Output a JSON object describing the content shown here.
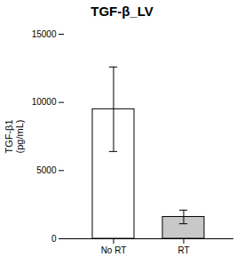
{
  "chart_data": {
    "type": "bar",
    "title": "TGF-β_LV",
    "categories": [
      "No RT",
      "RT"
    ],
    "values": [
      9500,
      1600
    ],
    "errors": [
      3100,
      500
    ],
    "colors": [
      "#ffffff",
      "#c8c8c8"
    ],
    "ylabel": "TGF-β1\n(pg/mL)",
    "ylim": [
      0,
      15000
    ],
    "yticks": [
      0,
      5000,
      10000,
      15000
    ],
    "grid": false
  }
}
